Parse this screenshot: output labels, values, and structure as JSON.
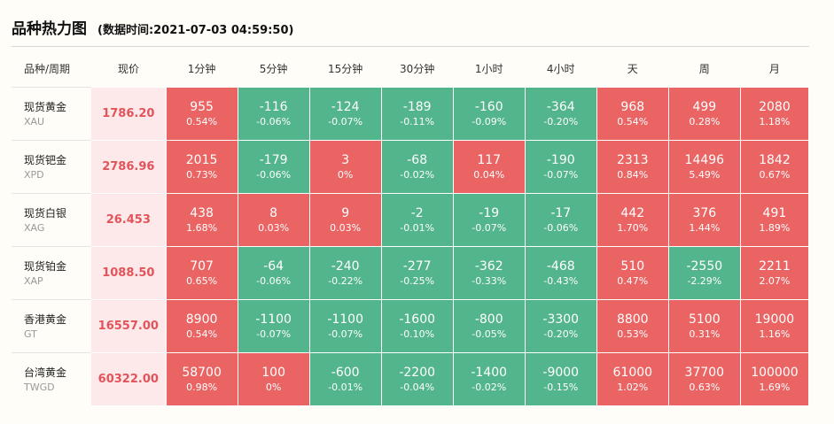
{
  "header": {
    "title": "品种热力图",
    "timestamp": "(数据时间:2021-07-03 04:59:50)"
  },
  "columns": [
    "品种/周期",
    "现价",
    "1分钟",
    "5分钟",
    "15分钟",
    "30分钟",
    "1小时",
    "4小时",
    "天",
    "周",
    "月"
  ],
  "colors": {
    "up": "#ea6464",
    "down": "#52b58b",
    "price_bg": "#fde8ea",
    "price_text": "#e2545a"
  },
  "rows": [
    {
      "name": "现货黄金",
      "code": "XAU",
      "price": "1786.20",
      "cells": [
        {
          "value": "955",
          "pct": "0.54%",
          "dir": "up"
        },
        {
          "value": "-116",
          "pct": "-0.06%",
          "dir": "down"
        },
        {
          "value": "-124",
          "pct": "-0.07%",
          "dir": "down"
        },
        {
          "value": "-189",
          "pct": "-0.11%",
          "dir": "down"
        },
        {
          "value": "-160",
          "pct": "-0.09%",
          "dir": "down"
        },
        {
          "value": "-364",
          "pct": "-0.20%",
          "dir": "down"
        },
        {
          "value": "968",
          "pct": "0.54%",
          "dir": "up"
        },
        {
          "value": "499",
          "pct": "0.28%",
          "dir": "up"
        },
        {
          "value": "2080",
          "pct": "1.18%",
          "dir": "up"
        }
      ]
    },
    {
      "name": "现货钯金",
      "code": "XPD",
      "price": "2786.96",
      "cells": [
        {
          "value": "2015",
          "pct": "0.73%",
          "dir": "up"
        },
        {
          "value": "-179",
          "pct": "-0.06%",
          "dir": "down"
        },
        {
          "value": "3",
          "pct": "0%",
          "dir": "up"
        },
        {
          "value": "-68",
          "pct": "-0.02%",
          "dir": "down"
        },
        {
          "value": "117",
          "pct": "0.04%",
          "dir": "up"
        },
        {
          "value": "-190",
          "pct": "-0.07%",
          "dir": "down"
        },
        {
          "value": "2313",
          "pct": "0.84%",
          "dir": "up"
        },
        {
          "value": "14496",
          "pct": "5.49%",
          "dir": "up"
        },
        {
          "value": "1842",
          "pct": "0.67%",
          "dir": "up"
        }
      ]
    },
    {
      "name": "现货白银",
      "code": "XAG",
      "price": "26.453",
      "cells": [
        {
          "value": "438",
          "pct": "1.68%",
          "dir": "up"
        },
        {
          "value": "8",
          "pct": "0.03%",
          "dir": "up"
        },
        {
          "value": "9",
          "pct": "0.03%",
          "dir": "up"
        },
        {
          "value": "-2",
          "pct": "-0.01%",
          "dir": "down"
        },
        {
          "value": "-19",
          "pct": "-0.07%",
          "dir": "down"
        },
        {
          "value": "-17",
          "pct": "-0.06%",
          "dir": "down"
        },
        {
          "value": "442",
          "pct": "1.70%",
          "dir": "up"
        },
        {
          "value": "376",
          "pct": "1.44%",
          "dir": "up"
        },
        {
          "value": "491",
          "pct": "1.89%",
          "dir": "up"
        }
      ]
    },
    {
      "name": "现货铂金",
      "code": "XAP",
      "price": "1088.50",
      "cells": [
        {
          "value": "707",
          "pct": "0.65%",
          "dir": "up"
        },
        {
          "value": "-64",
          "pct": "-0.06%",
          "dir": "down"
        },
        {
          "value": "-240",
          "pct": "-0.22%",
          "dir": "down"
        },
        {
          "value": "-277",
          "pct": "-0.25%",
          "dir": "down"
        },
        {
          "value": "-362",
          "pct": "-0.33%",
          "dir": "down"
        },
        {
          "value": "-468",
          "pct": "-0.43%",
          "dir": "down"
        },
        {
          "value": "510",
          "pct": "0.47%",
          "dir": "up"
        },
        {
          "value": "-2550",
          "pct": "-2.29%",
          "dir": "down"
        },
        {
          "value": "2211",
          "pct": "2.07%",
          "dir": "up"
        }
      ]
    },
    {
      "name": "香港黄金",
      "code": "GT",
      "price": "16557.00",
      "cells": [
        {
          "value": "8900",
          "pct": "0.54%",
          "dir": "up"
        },
        {
          "value": "-1100",
          "pct": "-0.07%",
          "dir": "down"
        },
        {
          "value": "-1100",
          "pct": "-0.07%",
          "dir": "down"
        },
        {
          "value": "-1600",
          "pct": "-0.10%",
          "dir": "down"
        },
        {
          "value": "-800",
          "pct": "-0.05%",
          "dir": "down"
        },
        {
          "value": "-3300",
          "pct": "-0.20%",
          "dir": "down"
        },
        {
          "value": "8800",
          "pct": "0.53%",
          "dir": "up"
        },
        {
          "value": "5100",
          "pct": "0.31%",
          "dir": "up"
        },
        {
          "value": "19000",
          "pct": "1.16%",
          "dir": "up"
        }
      ]
    },
    {
      "name": "台湾黄金",
      "code": "TWGD",
      "price": "60322.00",
      "cells": [
        {
          "value": "58700",
          "pct": "0.98%",
          "dir": "up"
        },
        {
          "value": "100",
          "pct": "0%",
          "dir": "up"
        },
        {
          "value": "-600",
          "pct": "-0.01%",
          "dir": "down"
        },
        {
          "value": "-2200",
          "pct": "-0.04%",
          "dir": "down"
        },
        {
          "value": "-1400",
          "pct": "-0.02%",
          "dir": "down"
        },
        {
          "value": "-9000",
          "pct": "-0.15%",
          "dir": "down"
        },
        {
          "value": "61000",
          "pct": "1.02%",
          "dir": "up"
        },
        {
          "value": "37700",
          "pct": "0.63%",
          "dir": "up"
        },
        {
          "value": "100000",
          "pct": "1.69%",
          "dir": "up"
        }
      ]
    }
  ]
}
